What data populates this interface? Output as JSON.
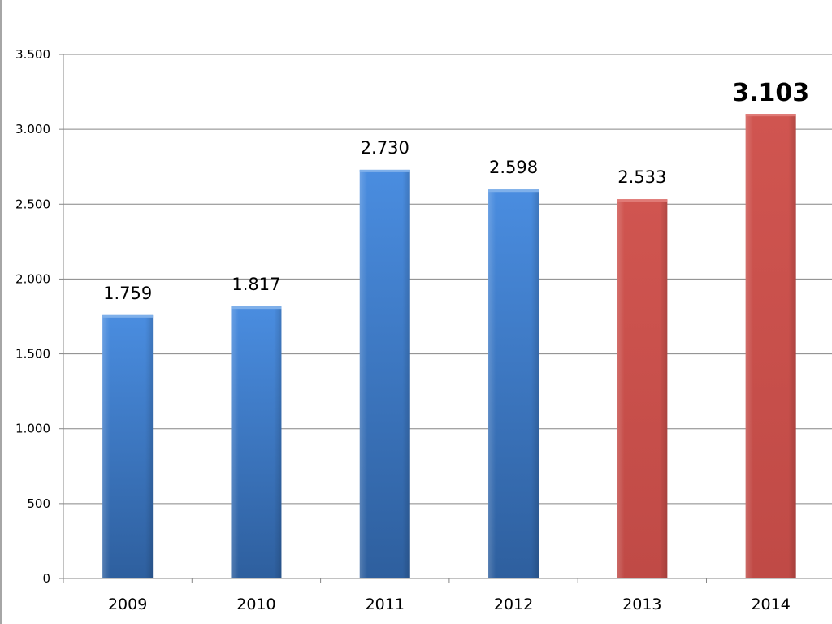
{
  "chart_data": {
    "type": "bar",
    "categories": [
      "2009",
      "2010",
      "2011",
      "2012",
      "2013",
      "2014"
    ],
    "values": [
      1759,
      1817,
      2730,
      2598,
      2533,
      3103
    ],
    "data_labels": [
      "1.759",
      "1.817",
      "2.730",
      "2.598",
      "2.533",
      "3.103"
    ],
    "emphasized_label_index": 5,
    "bar_colors": [
      "#3f7fcf",
      "#3f7fcf",
      "#3f7fcf",
      "#3f7fcf",
      "#c9504c",
      "#c9504c"
    ],
    "ylim": [
      0,
      3500
    ],
    "yticks": [
      0,
      500,
      1000,
      1500,
      2000,
      2500,
      3000,
      3500
    ],
    "ytick_labels": [
      "0",
      "500",
      "1.000",
      "1.500",
      "2.000",
      "2.500",
      "3.000",
      "3.500"
    ],
    "grid": true,
    "legend": "none",
    "title": "",
    "xlabel": "",
    "ylabel": ""
  },
  "colors": {
    "blue_bar": "#3f7fcf",
    "red_bar": "#c9504c",
    "grid": "#868686",
    "axis": "#868686"
  }
}
